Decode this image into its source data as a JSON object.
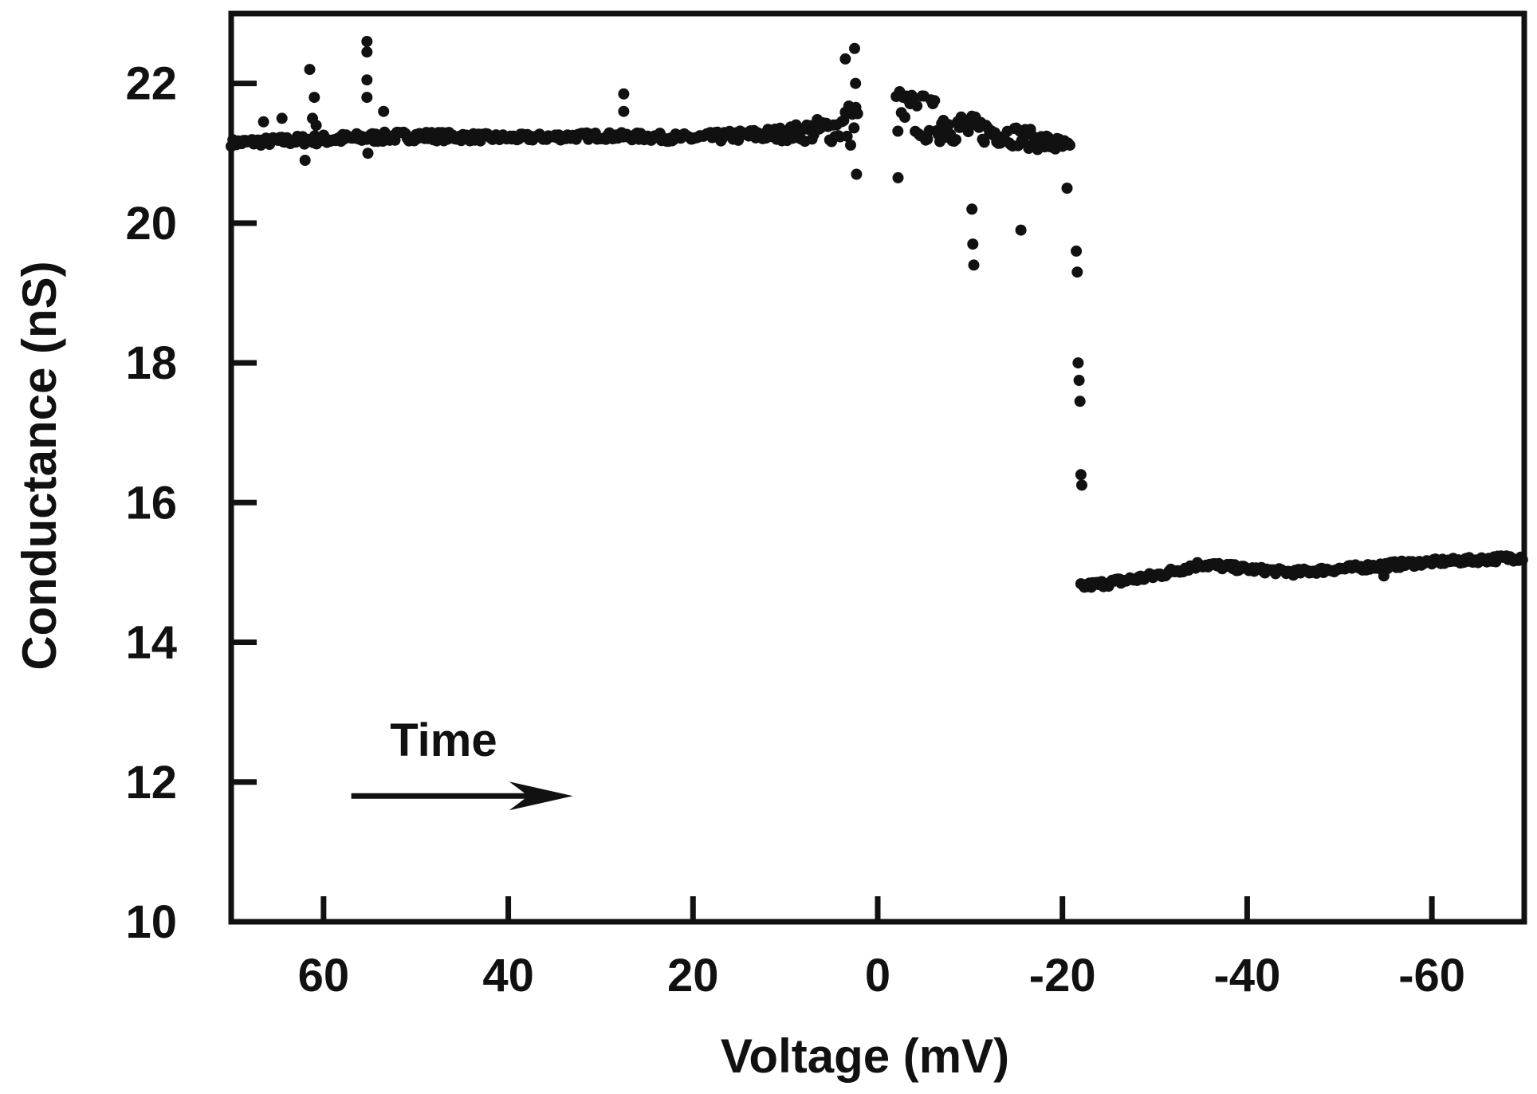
{
  "chart_data": {
    "type": "scatter",
    "title": "",
    "xlabel": "Voltage (mV)",
    "ylabel": "Conductance (nS)",
    "xlim": [
      70,
      -70
    ],
    "ylim": [
      10,
      23
    ],
    "x_reversed": true,
    "xticks": [
      60,
      40,
      20,
      0,
      -20,
      -40,
      -60
    ],
    "xtick_labels": [
      "60",
      "40",
      "20",
      "0",
      "-20",
      "-40",
      "-60"
    ],
    "yticks": [
      10,
      12,
      14,
      16,
      18,
      20,
      22
    ],
    "ytick_labels": [
      "10",
      "12",
      "14",
      "16",
      "18",
      "20",
      "22"
    ],
    "grid": false,
    "annotation": {
      "text": "Time",
      "arrow_direction": "right",
      "arrow_from_x": 57,
      "arrow_to_x": 33,
      "arrow_y": 11.8,
      "text_x": 47,
      "text_y": 12.6
    },
    "series": [
      {
        "marker_color": "#111111",
        "baseline_segments": [
          {
            "x": [
              70,
              60,
              50,
              40,
              30,
              20,
              10,
              5,
              2
            ],
            "y": [
              21.15,
              21.2,
              21.25,
              21.22,
              21.25,
              21.22,
              21.28,
              21.35,
              21.45
            ],
            "spread": [
              0.05,
              0.07,
              0.07,
              0.05,
              0.05,
              0.06,
              0.1,
              0.2,
              0.4
            ]
          },
          {
            "x": [
              -2,
              -5,
              -10,
              -15,
              -20,
              -21
            ],
            "y": [
              21.6,
              21.5,
              21.35,
              21.25,
              21.1,
              21.0
            ],
            "spread": [
              0.35,
              0.35,
              0.2,
              0.15,
              0.12,
              0.2
            ]
          },
          {
            "x": [
              -22,
              -25,
              -30,
              -35,
              -40,
              -45,
              -50,
              -55,
              -60,
              -65,
              -70
            ],
            "y": [
              14.8,
              14.85,
              14.95,
              15.12,
              15.05,
              15.0,
              15.05,
              15.1,
              15.15,
              15.18,
              15.22
            ],
            "spread": [
              0.04,
              0.05,
              0.05,
              0.05,
              0.04,
              0.04,
              0.04,
              0.05,
              0.04,
              0.04,
              0.05
            ]
          }
        ],
        "outliers": {
          "x": [
            66.5,
            64.5,
            61.5,
            61.0,
            61.2,
            60.8,
            62,
            55.3,
            55.3,
            55.3,
            55.3,
            55.2,
            53.5,
            52,
            27.5,
            27.5,
            3.5,
            2.5,
            2.3,
            2.4,
            -2.2,
            -10.2,
            -10.3,
            -10.4,
            -15.5,
            -20.5,
            -21.5,
            -21.6,
            -21.7,
            -21.8,
            -21.9,
            -22.0,
            -22.1,
            -54.8
          ],
          "y": [
            21.45,
            21.5,
            22.2,
            21.8,
            21.5,
            21.4,
            20.9,
            22.6,
            22.45,
            22.05,
            21.8,
            21.0,
            21.6,
            21.3,
            21.85,
            21.6,
            22.35,
            22.5,
            20.7,
            22.0,
            20.65,
            20.2,
            19.7,
            19.4,
            19.9,
            20.5,
            19.6,
            19.3,
            18.0,
            17.75,
            17.45,
            16.4,
            16.25,
            14.95
          ]
        }
      }
    ]
  }
}
